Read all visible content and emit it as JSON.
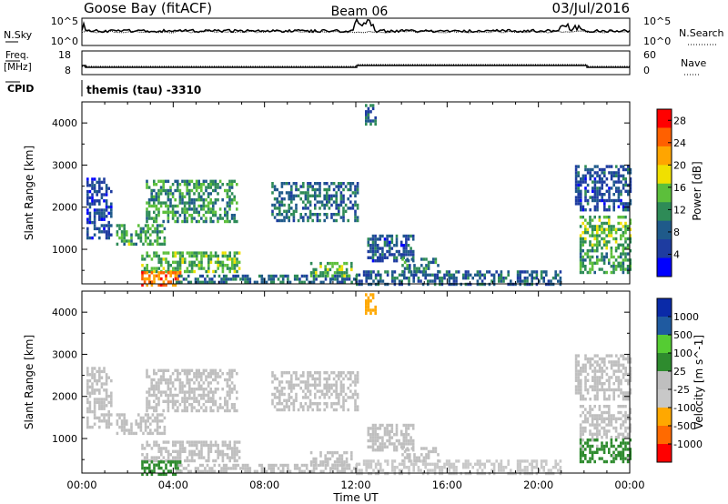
{
  "header": {
    "station": "Goose Bay (fitACF)",
    "beam": "Beam 06",
    "date": "03/Jul/2016"
  },
  "panels": {
    "noise": {
      "left_label": "N.Sky",
      "right_label": "N.Search",
      "left_ticks": [
        "10^5",
        "10^0"
      ],
      "right_ticks": [
        "10^5",
        "10^0"
      ]
    },
    "freq": {
      "left_label_1": "Freq.",
      "left_label_2": "[MHz]",
      "right_label": "Nave",
      "left_ticks": [
        "18",
        "8"
      ],
      "right_ticks": [
        "60",
        "0"
      ]
    },
    "cpid": {
      "label": "CPID",
      "value": "themis (tau) -3310"
    }
  },
  "colors": {
    "power": [
      "#0000ff",
      "#1e3ca0",
      "#1f5a8a",
      "#2e8b57",
      "#5cbf3b",
      "#f0e000",
      "#ffa500",
      "#ff6000",
      "#ff0000"
    ],
    "velocity": [
      "#ff0000",
      "#ff6a00",
      "#ffa800",
      "#c8c8c8",
      "#bfbfbf",
      "#2e8b2e",
      "#55cc33",
      "#1f5aa0",
      "#0a2aa8"
    ]
  },
  "chart_data": [
    {
      "type": "heatmap",
      "title": "",
      "xlabel": "",
      "ylabel": "Slant Range [km]",
      "xlim": [
        "00:00",
        "24:00"
      ],
      "ylim": [
        180,
        4500
      ],
      "x_ticks": [
        "00:00",
        "04:00",
        "08:00",
        "12:00",
        "16:00",
        "20:00",
        "00:00"
      ],
      "y_ticks": [
        "1000",
        "2000",
        "3000",
        "4000"
      ],
      "colorbar": {
        "label": "Power [dB]",
        "ticks": [
          "4",
          "8",
          "12",
          "16",
          "20",
          "24",
          "28"
        ],
        "range": [
          0,
          30
        ]
      },
      "regions": [
        {
          "t0": 2.8,
          "t1": 6.8,
          "r0": 1650,
          "r1": 2650,
          "value": 12
        },
        {
          "t0": 1.5,
          "t1": 3.6,
          "r0": 1150,
          "r1": 1600,
          "value": 13
        },
        {
          "t0": 2.6,
          "t1": 6.9,
          "r0": 500,
          "r1": 950,
          "value": 14
        },
        {
          "t0": 2.6,
          "t1": 4.3,
          "r0": 180,
          "r1": 480,
          "value": 24
        },
        {
          "t0": 4.0,
          "t1": 12.0,
          "r0": 180,
          "r1": 400,
          "value": 9
        },
        {
          "t0": 8.3,
          "t1": 12.1,
          "r0": 1700,
          "r1": 2600,
          "value": 9
        },
        {
          "t0": 10.0,
          "t1": 11.8,
          "r0": 350,
          "r1": 700,
          "value": 14
        },
        {
          "t0": 12.0,
          "t1": 21.0,
          "r0": 180,
          "r1": 500,
          "value": 8
        },
        {
          "t0": 12.5,
          "t1": 14.5,
          "r0": 750,
          "r1": 1350,
          "value": 7
        },
        {
          "t0": 14.0,
          "t1": 15.6,
          "r0": 450,
          "r1": 800,
          "value": 10
        },
        {
          "t0": 12.4,
          "t1": 12.9,
          "r0": 3950,
          "r1": 4450,
          "value": 8
        },
        {
          "t0": 21.8,
          "t1": 24.0,
          "r0": 1000,
          "r1": 1800,
          "value": 14
        },
        {
          "t0": 21.8,
          "t1": 24.0,
          "r0": 450,
          "r1": 1000,
          "value": 12
        },
        {
          "t0": 21.6,
          "t1": 24.0,
          "r0": 1900,
          "r1": 3000,
          "value": 7
        },
        {
          "t0": 0.2,
          "t1": 1.3,
          "r0": 1300,
          "r1": 2700,
          "value": 6
        }
      ]
    },
    {
      "type": "heatmap",
      "title": "",
      "xlabel": "Time UT",
      "ylabel": "Slant Range [km]",
      "xlim": [
        "00:00",
        "24:00"
      ],
      "ylim": [
        180,
        4500
      ],
      "x_ticks": [
        "00:00",
        "04:00",
        "08:00",
        "12:00",
        "16:00",
        "20:00",
        "00:00"
      ],
      "y_ticks": [
        "1000",
        "2000",
        "3000",
        "4000"
      ],
      "colorbar": {
        "label": "Velocity [m s^-1]",
        "ticks": [
          "1000",
          "500",
          "100",
          "25",
          "-25",
          "-100",
          "-500",
          "-1000"
        ]
      },
      "regions": [
        {
          "t0": 2.8,
          "t1": 6.8,
          "r0": 1650,
          "r1": 2650,
          "value": 0
        },
        {
          "t0": 1.5,
          "t1": 3.6,
          "r0": 1150,
          "r1": 1600,
          "value": 0
        },
        {
          "t0": 2.6,
          "t1": 6.9,
          "r0": 500,
          "r1": 950,
          "value": 0
        },
        {
          "t0": 2.6,
          "t1": 4.3,
          "r0": 180,
          "r1": 480,
          "value": 80
        },
        {
          "t0": 4.0,
          "t1": 12.0,
          "r0": 180,
          "r1": 400,
          "value": 0
        },
        {
          "t0": 8.3,
          "t1": 12.1,
          "r0": 1700,
          "r1": 2600,
          "value": 0
        },
        {
          "t0": 10.0,
          "t1": 11.8,
          "r0": 350,
          "r1": 700,
          "value": 0
        },
        {
          "t0": 12.0,
          "t1": 21.0,
          "r0": 180,
          "r1": 500,
          "value": -60
        },
        {
          "t0": 12.5,
          "t1": 14.5,
          "r0": 750,
          "r1": 1350,
          "value": 0
        },
        {
          "t0": 14.0,
          "t1": 15.6,
          "r0": 450,
          "r1": 800,
          "value": 0
        },
        {
          "t0": 12.4,
          "t1": 12.9,
          "r0": 3950,
          "r1": 4450,
          "value": -300
        },
        {
          "t0": 21.8,
          "t1": 24.0,
          "r0": 1000,
          "r1": 1800,
          "value": 0
        },
        {
          "t0": 21.8,
          "t1": 24.0,
          "r0": 450,
          "r1": 1000,
          "value": 40
        },
        {
          "t0": 21.6,
          "t1": 24.0,
          "r0": 1900,
          "r1": 3000,
          "value": 0
        },
        {
          "t0": 0.2,
          "t1": 1.3,
          "r0": 1300,
          "r1": 2700,
          "value": 0
        }
      ]
    }
  ]
}
